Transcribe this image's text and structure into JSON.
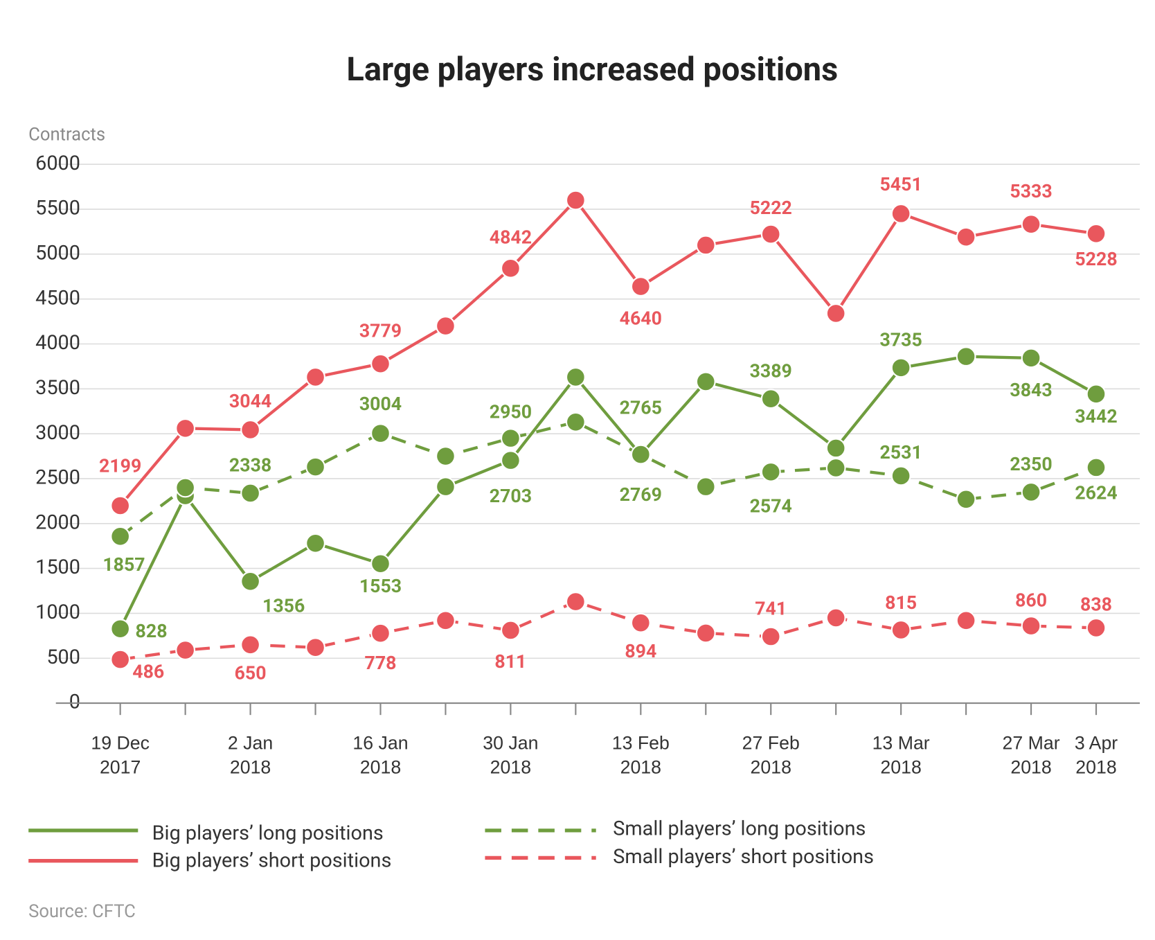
{
  "chart_data": {
    "type": "line",
    "title": "Large players increased positions",
    "y_label": "Contracts",
    "source": "Source: CFTC",
    "categories": [
      "19 Dec 2017",
      null,
      "2 Jan 2018",
      null,
      "16 Jan 2018",
      null,
      "30 Jan 2018",
      null,
      "13 Feb 2018",
      null,
      "27 Feb 2018",
      null,
      "13 Mar 2018",
      null,
      "27 Mar 2018",
      "3 Apr 2018"
    ],
    "ylim": [
      0,
      6000
    ],
    "yticks": [
      0,
      500,
      1000,
      1500,
      2000,
      2500,
      3000,
      3500,
      4000,
      4500,
      5000,
      5500,
      6000
    ],
    "grid": true,
    "series": [
      {
        "name": "Big players’ long positions",
        "color": "#6f9d3e",
        "dashed": false,
        "values": [
          828,
          2310,
          1356,
          1780,
          1553,
          2410,
          2703,
          3630,
          2765,
          3580,
          3389,
          2840,
          3735,
          3860,
          3843,
          3442
        ],
        "value_labels": [
          "828",
          null,
          "1356",
          null,
          "1553",
          null,
          "2703",
          null,
          "2765",
          null,
          "3389",
          null,
          "3735",
          null,
          "3843",
          "3442"
        ]
      },
      {
        "name": "Big players’ short positions",
        "color": "#e9575d",
        "dashed": false,
        "values": [
          2199,
          3060,
          3044,
          3630,
          3779,
          4200,
          4842,
          5600,
          4640,
          5100,
          5222,
          4340,
          5451,
          5190,
          5333,
          5228
        ],
        "value_labels": [
          "2199",
          null,
          "3044",
          null,
          "3779",
          null,
          "4842",
          null,
          "4640",
          null,
          "5222",
          null,
          "5451",
          null,
          "5333",
          "5228"
        ]
      },
      {
        "name": "Small players’ long positions",
        "color": "#6f9d3e",
        "dashed": true,
        "values": [
          1857,
          2400,
          2338,
          2630,
          3004,
          2750,
          2950,
          3130,
          2769,
          2410,
          2574,
          2620,
          2531,
          2270,
          2350,
          2624
        ],
        "value_labels": [
          "1857",
          null,
          "2338",
          null,
          "3004",
          null,
          "2950",
          null,
          "2769",
          null,
          "2574",
          null,
          "2531",
          null,
          "2350",
          "2624"
        ]
      },
      {
        "name": "Small players’ short positions",
        "color": "#e9575d",
        "dashed": true,
        "values": [
          486,
          590,
          650,
          620,
          778,
          920,
          811,
          1130,
          894,
          780,
          741,
          950,
          815,
          920,
          860,
          838
        ],
        "value_labels": [
          "486",
          null,
          "650",
          null,
          "778",
          null,
          "811",
          null,
          "894",
          null,
          "741",
          null,
          "815",
          null,
          "860",
          "838"
        ]
      }
    ]
  }
}
